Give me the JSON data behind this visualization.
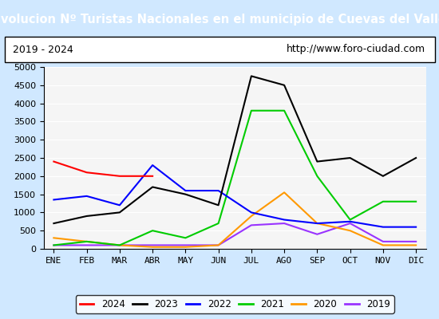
{
  "title": "Evolucion Nº Turistas Nacionales en el municipio de Cuevas del Valle",
  "subtitle_left": "2019 - 2024",
  "subtitle_right": "http://www.foro-ciudad.com",
  "title_bg_color": "#4da6ff",
  "subtitle_bg_color": "#ffffff",
  "months": [
    "ENE",
    "FEB",
    "MAR",
    "ABR",
    "MAY",
    "JUN",
    "JUL",
    "AGO",
    "SEP",
    "OCT",
    "NOV",
    "DIC"
  ],
  "ylim": [
    0,
    5000
  ],
  "yticks": [
    0,
    500,
    1000,
    1500,
    2000,
    2500,
    3000,
    3500,
    4000,
    4500,
    5000
  ],
  "series": {
    "2024": {
      "color": "#ff0000",
      "values": [
        2400,
        2100,
        2000,
        2000,
        null,
        null,
        null,
        null,
        null,
        null,
        null,
        null
      ]
    },
    "2023": {
      "color": "#000000",
      "values": [
        700,
        900,
        1000,
        1700,
        1500,
        1200,
        4750,
        4500,
        2400,
        2500,
        2000,
        2500
      ]
    },
    "2022": {
      "color": "#0000ff",
      "values": [
        1350,
        1450,
        1200,
        2300,
        1600,
        1600,
        1000,
        800,
        700,
        750,
        600,
        600
      ]
    },
    "2021": {
      "color": "#00cc00",
      "values": [
        100,
        200,
        100,
        500,
        300,
        700,
        3800,
        3800,
        2000,
        800,
        1300,
        1300
      ]
    },
    "2020": {
      "color": "#ff9900",
      "values": [
        300,
        200,
        100,
        50,
        50,
        100,
        900,
        1550,
        700,
        500,
        100,
        100
      ]
    },
    "2019": {
      "color": "#9933ff",
      "values": [
        100,
        100,
        100,
        100,
        100,
        100,
        650,
        700,
        400,
        700,
        200,
        200
      ]
    }
  },
  "legend_order": [
    "2024",
    "2023",
    "2022",
    "2021",
    "2020",
    "2019"
  ]
}
